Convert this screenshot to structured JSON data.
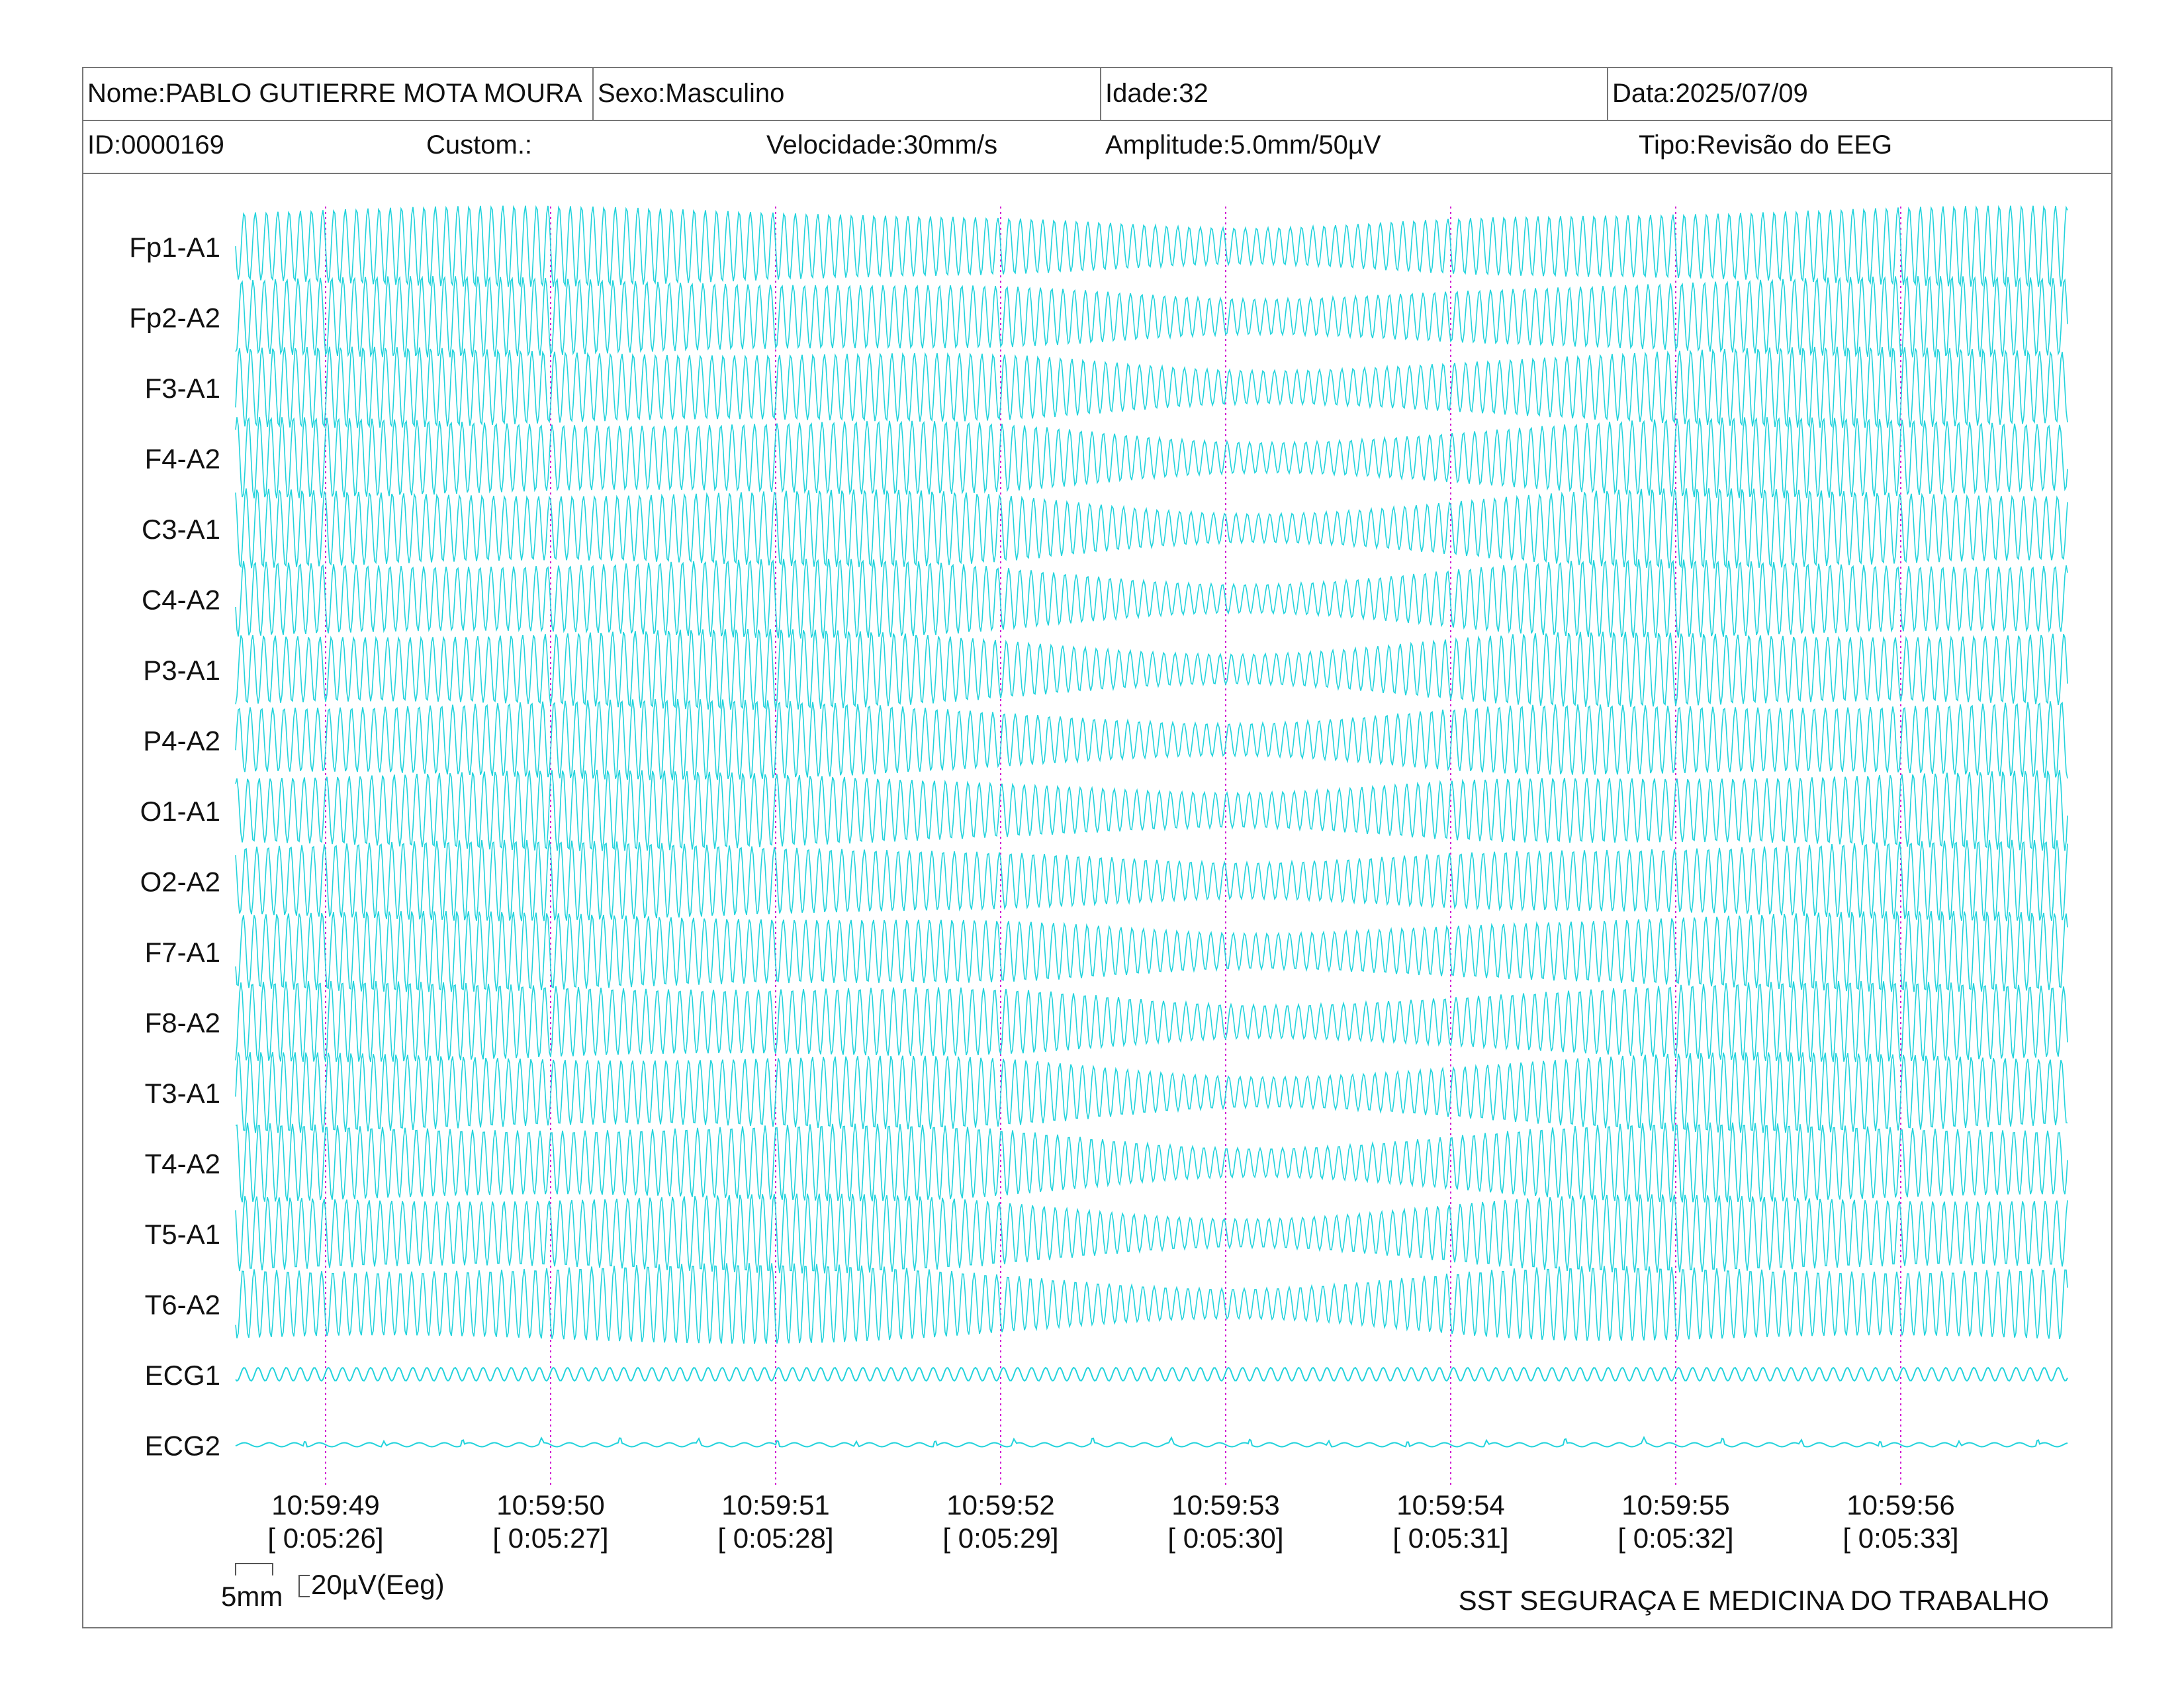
{
  "header": {
    "nome": "Nome:PABLO GUTIERRE MOTA MOURA",
    "sexo": "Sexo:Masculino",
    "idade": "Idade:32",
    "data": "Data:2025/07/09",
    "id": "ID:0000169",
    "custom": "Custom.:",
    "velocidade": "Velocidade:30mm/s",
    "amplitude": "Amplitude:5.0mm/50µV",
    "tipo": "Tipo:Revisão do EEG"
  },
  "footer": {
    "scale_time": "5mm",
    "scale_amp": "20µV(Eeg)",
    "clinic": "SST SEGURAÇA E MEDICINA DO TRABALHO"
  },
  "colors": {
    "trace": "#22d3dc",
    "marker": "#d21ed2",
    "border": "#777777"
  },
  "chart_data": {
    "type": "line",
    "channels": [
      "Fp1-A1",
      "Fp2-A2",
      "F3-A1",
      "F4-A2",
      "C3-A1",
      "C4-A2",
      "P3-A1",
      "P4-A2",
      "O1-A1",
      "O2-A2",
      "F7-A1",
      "F8-A2",
      "T3-A1",
      "T4-A2",
      "T5-A1",
      "T6-A2",
      "ECG1",
      "ECG2"
    ],
    "time_ticks": [
      {
        "clock": "10:59:49",
        "elapsed": "[ 0:05:26]"
      },
      {
        "clock": "10:59:50",
        "elapsed": "[ 0:05:27]"
      },
      {
        "clock": "10:59:51",
        "elapsed": "[ 0:05:28]"
      },
      {
        "clock": "10:59:52",
        "elapsed": "[ 0:05:29]"
      },
      {
        "clock": "10:59:53",
        "elapsed": "[ 0:05:30]"
      },
      {
        "clock": "10:59:54",
        "elapsed": "[ 0:05:31]"
      },
      {
        "clock": "10:59:55",
        "elapsed": "[ 0:05:32]"
      },
      {
        "clock": "10:59:56",
        "elapsed": "[ 0:05:33]"
      }
    ],
    "x_range_seconds": [
      -0.4,
      7.7
    ],
    "grid": "vertical dotted line at each second",
    "legend": "none",
    "eeg_frequency_hz": 20
  }
}
